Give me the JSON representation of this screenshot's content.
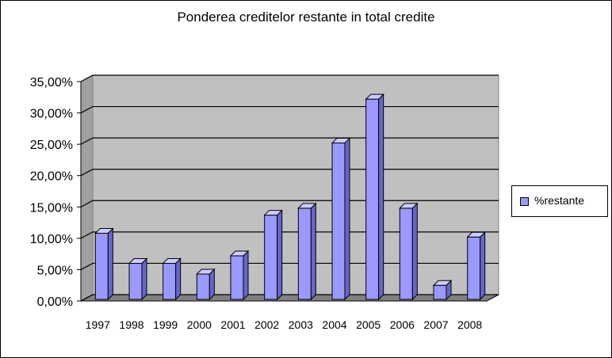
{
  "chart_data": {
    "type": "bar",
    "title": "Ponderea creditelor restante in total credite",
    "xlabel": "",
    "ylabel": "",
    "categories": [
      "1997",
      "1998",
      "1999",
      "2000",
      "2001",
      "2002",
      "2003",
      "2004",
      "2005",
      "2006",
      "2007",
      "2008"
    ],
    "series": [
      {
        "name": "%restante",
        "values": [
          0.108,
          0.06,
          0.06,
          0.043,
          0.072,
          0.137,
          0.148,
          0.252,
          0.322,
          0.148,
          0.025,
          0.102
        ]
      }
    ],
    "ylim": [
      0,
      0.35
    ],
    "yticks": [
      0,
      0.05,
      0.1,
      0.15,
      0.2,
      0.25,
      0.3,
      0.35
    ],
    "ytick_labels": [
      "0,00%",
      "5,00%",
      "10,00%",
      "15,00%",
      "20,00%",
      "25,00%",
      "30,00%",
      "35,00%"
    ],
    "grid": true,
    "legend_position": "right",
    "style": "3d",
    "colors": {
      "bar_front": "#9999FF",
      "bar_side": "#6666CC",
      "bar_top": "#CCCCFF",
      "wall": "#C0C0C0",
      "floor": "#808080",
      "grid": "#000000"
    }
  }
}
